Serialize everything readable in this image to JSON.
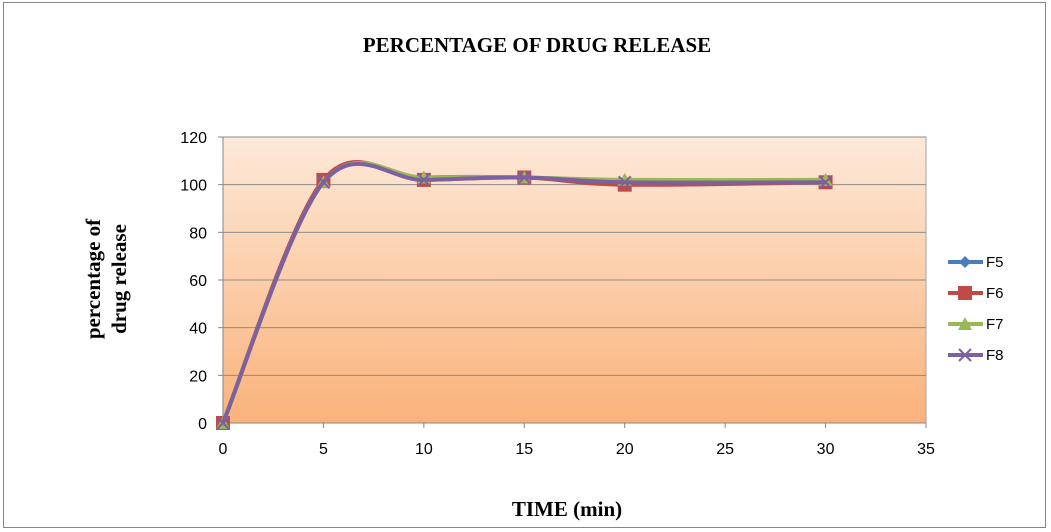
{
  "chart_data": {
    "type": "line",
    "title": "PERCENTAGE OF DRUG RELEASE",
    "xlabel": "TIME (min)",
    "ylabel_lines": [
      "percentage  of",
      "drug release"
    ],
    "xlim": [
      0,
      35
    ],
    "ylim": [
      0,
      120
    ],
    "x_ticks": [
      0,
      5,
      10,
      15,
      20,
      25,
      30,
      35
    ],
    "y_ticks": [
      0,
      20,
      40,
      60,
      80,
      100,
      120
    ],
    "grid": "horizontal",
    "legend_position": "right",
    "x": [
      0,
      5,
      10,
      15,
      20,
      30
    ],
    "series": [
      {
        "name": "F5",
        "color": "#4a7ebb",
        "marker": "diamond",
        "values": [
          0,
          101,
          103,
          103,
          101,
          101
        ]
      },
      {
        "name": "F6",
        "color": "#be4b48",
        "marker": "square",
        "values": [
          0,
          102,
          102,
          103,
          100,
          101
        ]
      },
      {
        "name": "F7",
        "color": "#98b954",
        "marker": "triangle",
        "values": [
          0,
          101,
          103,
          103,
          102,
          102
        ]
      },
      {
        "name": "F8",
        "color": "#7d60a0",
        "marker": "x",
        "values": [
          0,
          101,
          102,
          103,
          101,
          101
        ]
      }
    ],
    "plot_background": {
      "top_color": "#fde9d9",
      "bottom_color": "#fab27a"
    }
  }
}
